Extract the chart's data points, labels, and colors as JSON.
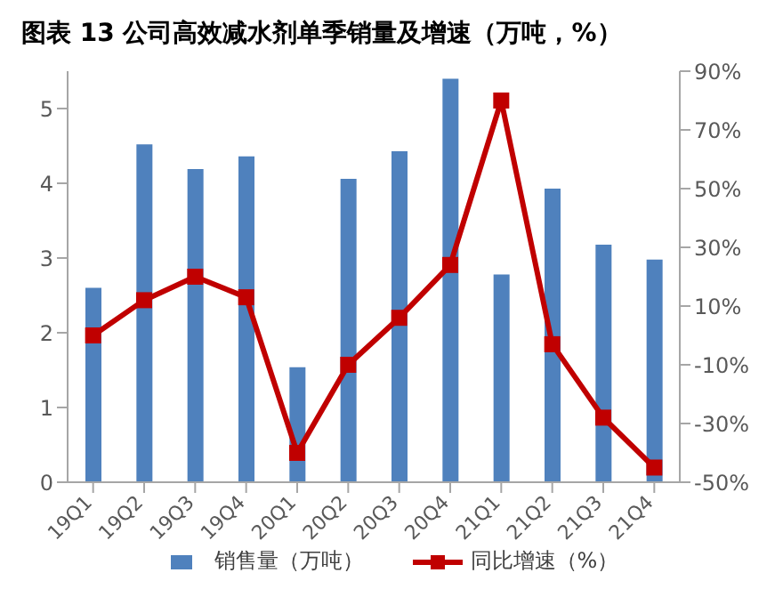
{
  "chart_data": {
    "type": "bar",
    "title": "图表 13 公司高效减水剂单季销量及增速（万吨，%）",
    "categories": [
      "19Q1",
      "19Q2",
      "19Q3",
      "19Q4",
      "20Q1",
      "20Q2",
      "20Q3",
      "20Q4",
      "21Q1",
      "21Q2",
      "21Q3",
      "21Q4"
    ],
    "series": [
      {
        "name": "销售量（万吨）",
        "color": "#4f81bd",
        "values": [
          2.6,
          4.52,
          4.19,
          4.36,
          1.54,
          4.06,
          4.43,
          5.4,
          2.78,
          3.93,
          3.18,
          2.98
        ]
      },
      {
        "name": "同比增速（%）",
        "type": "line",
        "axis": "y2",
        "color": "#c00000",
        "marker": "square",
        "line_style": "solid",
        "values": [
          0,
          12,
          20,
          13,
          -40,
          -10,
          6,
          24,
          80,
          -3,
          -28,
          -45
        ]
      }
    ],
    "ylim": [
      0,
      5.5
    ],
    "yticks": [
      0,
      1,
      2,
      3,
      4,
      5
    ],
    "y2lim": [
      -50,
      90
    ],
    "y2ticks": [
      {
        "value": -50,
        "label": "-50%"
      },
      {
        "value": -30,
        "label": "-30%"
      },
      {
        "value": -10,
        "label": "-10%"
      },
      {
        "value": 10,
        "label": "10%"
      },
      {
        "value": 30,
        "label": "30%"
      },
      {
        "value": 50,
        "label": "50%"
      },
      {
        "value": 70,
        "label": "70%"
      },
      {
        "value": 90,
        "label": "90%"
      }
    ],
    "grid": false,
    "legend": "bottom"
  }
}
